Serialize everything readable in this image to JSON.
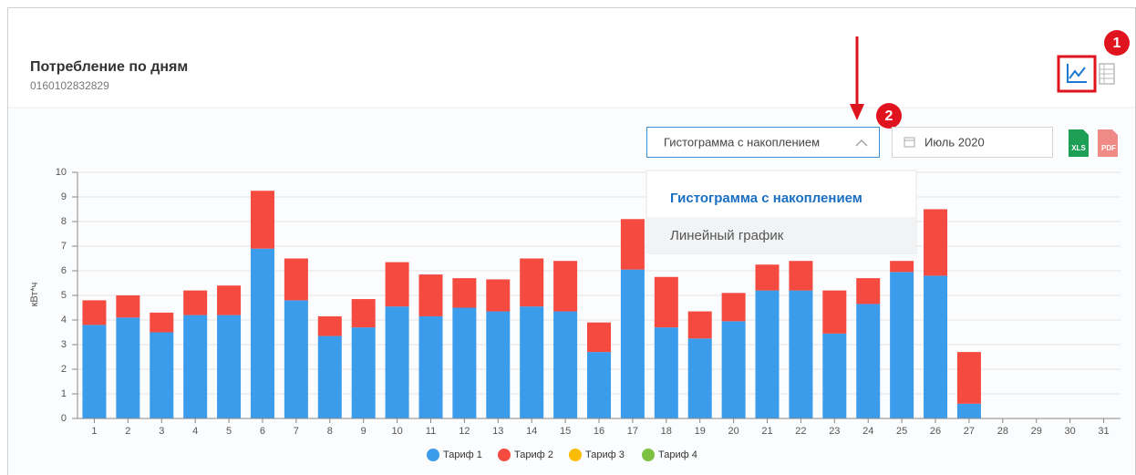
{
  "header": {
    "title": "Потребление по дням",
    "subtitle": "0160102832829"
  },
  "controls": {
    "chart_type": "Гистограмма с накоплением",
    "period": "Июль 2020",
    "export": [
      "XLS",
      "PDF"
    ]
  },
  "dropdown": {
    "options": [
      "Гистограмма с накоплением",
      "Линейный график"
    ]
  },
  "annotations": [
    "1",
    "2"
  ],
  "chart_data": {
    "type": "stacked_bar",
    "y_label": "кВт*ч",
    "categories": [
      "1",
      "2",
      "3",
      "4",
      "5",
      "6",
      "7",
      "8",
      "9",
      "10",
      "11",
      "12",
      "13",
      "14",
      "15",
      "16",
      "17",
      "18",
      "19",
      "20",
      "21",
      "22",
      "23",
      "24",
      "25",
      "26",
      "27",
      "28",
      "29",
      "30",
      "31"
    ],
    "series": [
      {
        "name": "Тариф 1",
        "color": "#3c9cec",
        "values": [
          3.8,
          4.1,
          3.5,
          4.2,
          4.2,
          6.9,
          4.8,
          3.35,
          3.7,
          4.55,
          4.15,
          4.5,
          4.35,
          4.55,
          4.35,
          2.7,
          6.05,
          3.7,
          3.25,
          3.95,
          5.2,
          5.2,
          3.45,
          4.65,
          5.95,
          5.8,
          0.6,
          null,
          null,
          null,
          null
        ]
      },
      {
        "name": "Тариф 2",
        "color": "#f44a3f",
        "values": [
          1.0,
          0.9,
          0.8,
          1.0,
          1.2,
          2.35,
          1.7,
          0.8,
          1.15,
          1.8,
          1.7,
          1.2,
          1.3,
          1.95,
          2.05,
          1.2,
          2.05,
          2.05,
          1.1,
          1.15,
          1.05,
          1.2,
          1.75,
          1.05,
          0.45,
          2.7,
          2.1,
          null,
          null,
          null,
          null
        ]
      },
      {
        "name": "Тариф 3",
        "color": "#fbbc05",
        "values": [
          null,
          null,
          null,
          null,
          null,
          null,
          null,
          null,
          null,
          null,
          null,
          null,
          null,
          null,
          null,
          null,
          null,
          null,
          null,
          null,
          null,
          null,
          null,
          null,
          null,
          null,
          null,
          null,
          null,
          null,
          null
        ]
      },
      {
        "name": "Тариф 4",
        "color": "#7cc142",
        "values": [
          null,
          null,
          null,
          null,
          null,
          null,
          null,
          null,
          null,
          null,
          null,
          null,
          null,
          null,
          null,
          null,
          null,
          null,
          null,
          null,
          null,
          null,
          null,
          null,
          null,
          null,
          null,
          null,
          null,
          null,
          null
        ]
      }
    ],
    "ylim": [
      0,
      10
    ],
    "yticks": [
      0,
      1,
      2,
      3,
      4,
      5,
      6,
      7,
      8,
      9,
      10
    ],
    "grid": true
  }
}
